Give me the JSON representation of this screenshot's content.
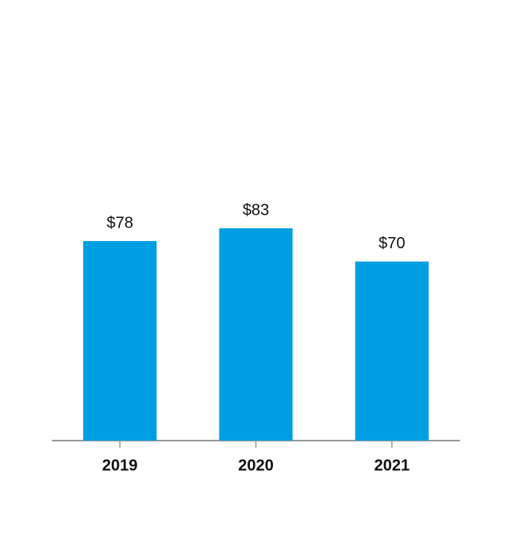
{
  "chart_data": {
    "type": "bar",
    "categories": [
      "2019",
      "2020",
      "2021"
    ],
    "values": [
      78,
      83,
      70
    ],
    "value_labels": [
      "$78",
      "$83",
      "$70"
    ],
    "color": "#009fe3"
  }
}
